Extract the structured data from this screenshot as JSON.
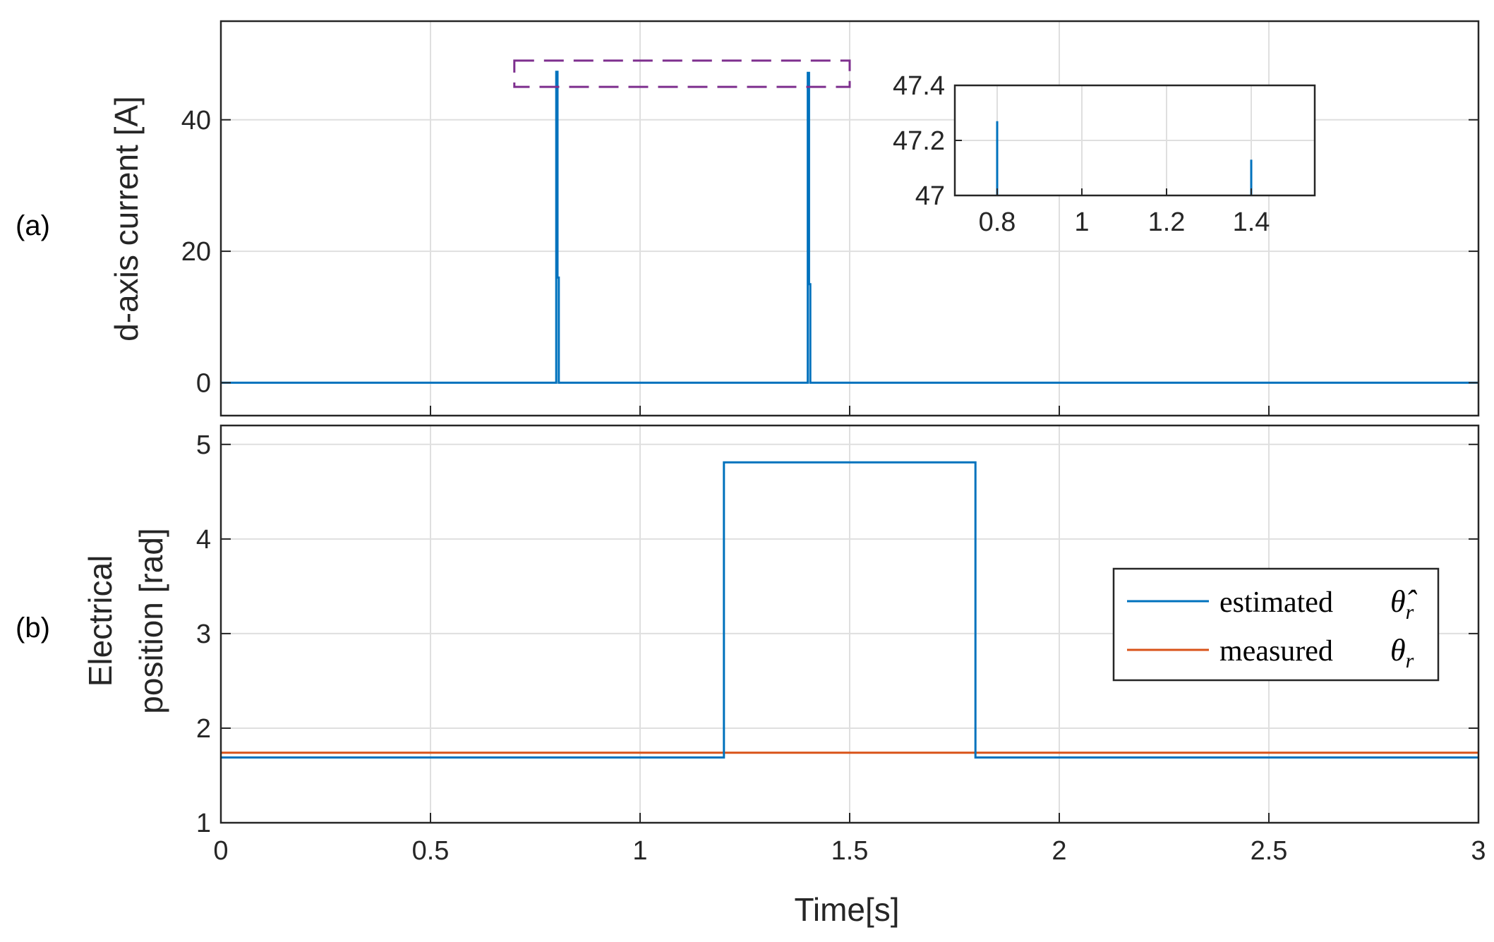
{
  "chart_data": [
    {
      "panel_label": "(a)",
      "type": "line",
      "ylabel": "d-axis current [A]",
      "xlim": [
        0,
        3
      ],
      "ylim": [
        -5,
        55
      ],
      "yticks": [
        "0",
        "20",
        "40"
      ],
      "grid": true,
      "series": [
        {
          "name": "d-axis current",
          "color": "#0072BD",
          "x": [
            0,
            0.8,
            0.8,
            0.803,
            0.803,
            0.806,
            0.806,
            1.4,
            1.4,
            1.403,
            1.403,
            1.406,
            1.406,
            3.0
          ],
          "y": [
            0,
            0,
            47.3,
            47.3,
            16,
            16,
            0,
            0,
            47.13,
            47.13,
            15,
            15,
            0,
            0
          ]
        }
      ],
      "highlight_box": {
        "x": [
          0.7,
          1.5
        ],
        "y": [
          45,
          49
        ],
        "color": "#7E2F8E",
        "style": "dashed"
      },
      "inset": {
        "xlim": [
          0.7,
          1.55
        ],
        "ylim": [
          47,
          47.4
        ],
        "xticks": [
          "0.8",
          "1",
          "1.2",
          "1.4"
        ],
        "yticks": [
          "47",
          "47.2",
          "47.4"
        ],
        "series": [
          {
            "x": 0.8,
            "y": 47.27
          },
          {
            "x": 1.4,
            "y": 47.13
          }
        ]
      }
    },
    {
      "panel_label": "(b)",
      "type": "line",
      "ylabel_line1": "Electrical",
      "ylabel_line2": "position [rad]",
      "xlabel": "Time[s]",
      "xlim": [
        0,
        3
      ],
      "ylim": [
        1,
        5.2
      ],
      "xticks": [
        "0",
        "0.5",
        "1",
        "1.5",
        "2",
        "2.5",
        "3"
      ],
      "yticks": [
        "1",
        "2",
        "3",
        "4",
        "5"
      ],
      "grid": true,
      "series": [
        {
          "name": "estimated",
          "legend_symbol": "θ̂",
          "legend_sub": "r",
          "color": "#0072BD",
          "x": [
            0,
            1.2,
            1.2,
            1.8,
            1.8,
            3.0
          ],
          "y": [
            1.69,
            1.69,
            4.81,
            4.81,
            1.69,
            1.69
          ]
        },
        {
          "name": "measured",
          "legend_symbol": "θ",
          "legend_sub": "r",
          "color": "#D95319",
          "x": [
            0,
            3.0
          ],
          "y": [
            1.74,
            1.74
          ]
        }
      ],
      "legend_position": "center-right"
    }
  ]
}
